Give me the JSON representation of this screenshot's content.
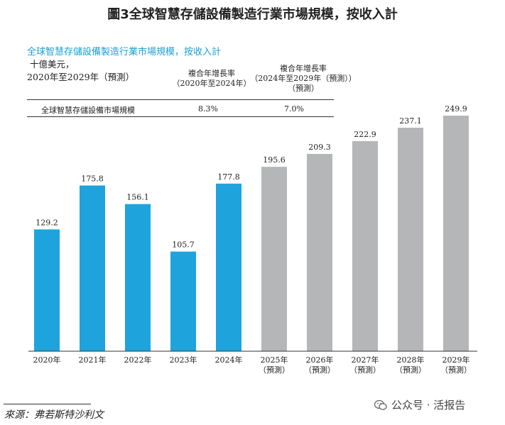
{
  "title": "圖3全球智慧存儲設備製造行業市場規模，按收入計",
  "subtitle": "全球智慧存儲設備製造行業市場規模，按收入計",
  "unit_line1": "十億美元，",
  "unit_line2": "2020年至2029年（預測）",
  "cagr_table": {
    "col1_title": "複合年增長率",
    "col1_range": "（2020年至2024年）",
    "col2_title": "複合年增長率",
    "col2_range": "（2024年至2029年（預測））",
    "col2_suffix": "（預測）",
    "row_label": "全球智慧存儲設備市場規模",
    "col1_value": "8.3%",
    "col2_value": "7.0%"
  },
  "chart_data": {
    "type": "bar",
    "categories": [
      "2020年",
      "2021年",
      "2022年",
      "2023年",
      "2024年",
      "2025年",
      "2026年",
      "2027年",
      "2028年",
      "2029年"
    ],
    "sub_labels": [
      "",
      "",
      "",
      "",
      "",
      "（預測）",
      "（預測）",
      "（預測）",
      "（預測）",
      "（預測）"
    ],
    "values": [
      129.2,
      175.8,
      156.1,
      105.7,
      177.8,
      195.6,
      209.3,
      222.9,
      237.1,
      249.9
    ],
    "value_labels": [
      "129.2",
      "175.8",
      "156.1",
      "105.7",
      "177.8",
      "195.6",
      "209.3",
      "222.9",
      "237.1",
      "249.9"
    ],
    "series_colors": [
      "#1ea3dc",
      "#1ea3dc",
      "#1ea3dc",
      "#1ea3dc",
      "#1ea3dc",
      "#b5b6b8",
      "#b5b6b8",
      "#b5b6b8",
      "#b5b6b8",
      "#b5b6b8"
    ],
    "ylim": [
      0,
      250
    ],
    "title": "",
    "xlabel": "",
    "ylabel": ""
  },
  "source": "來源：弗若斯特沙利文",
  "watermark": "公众号 · 活报告"
}
